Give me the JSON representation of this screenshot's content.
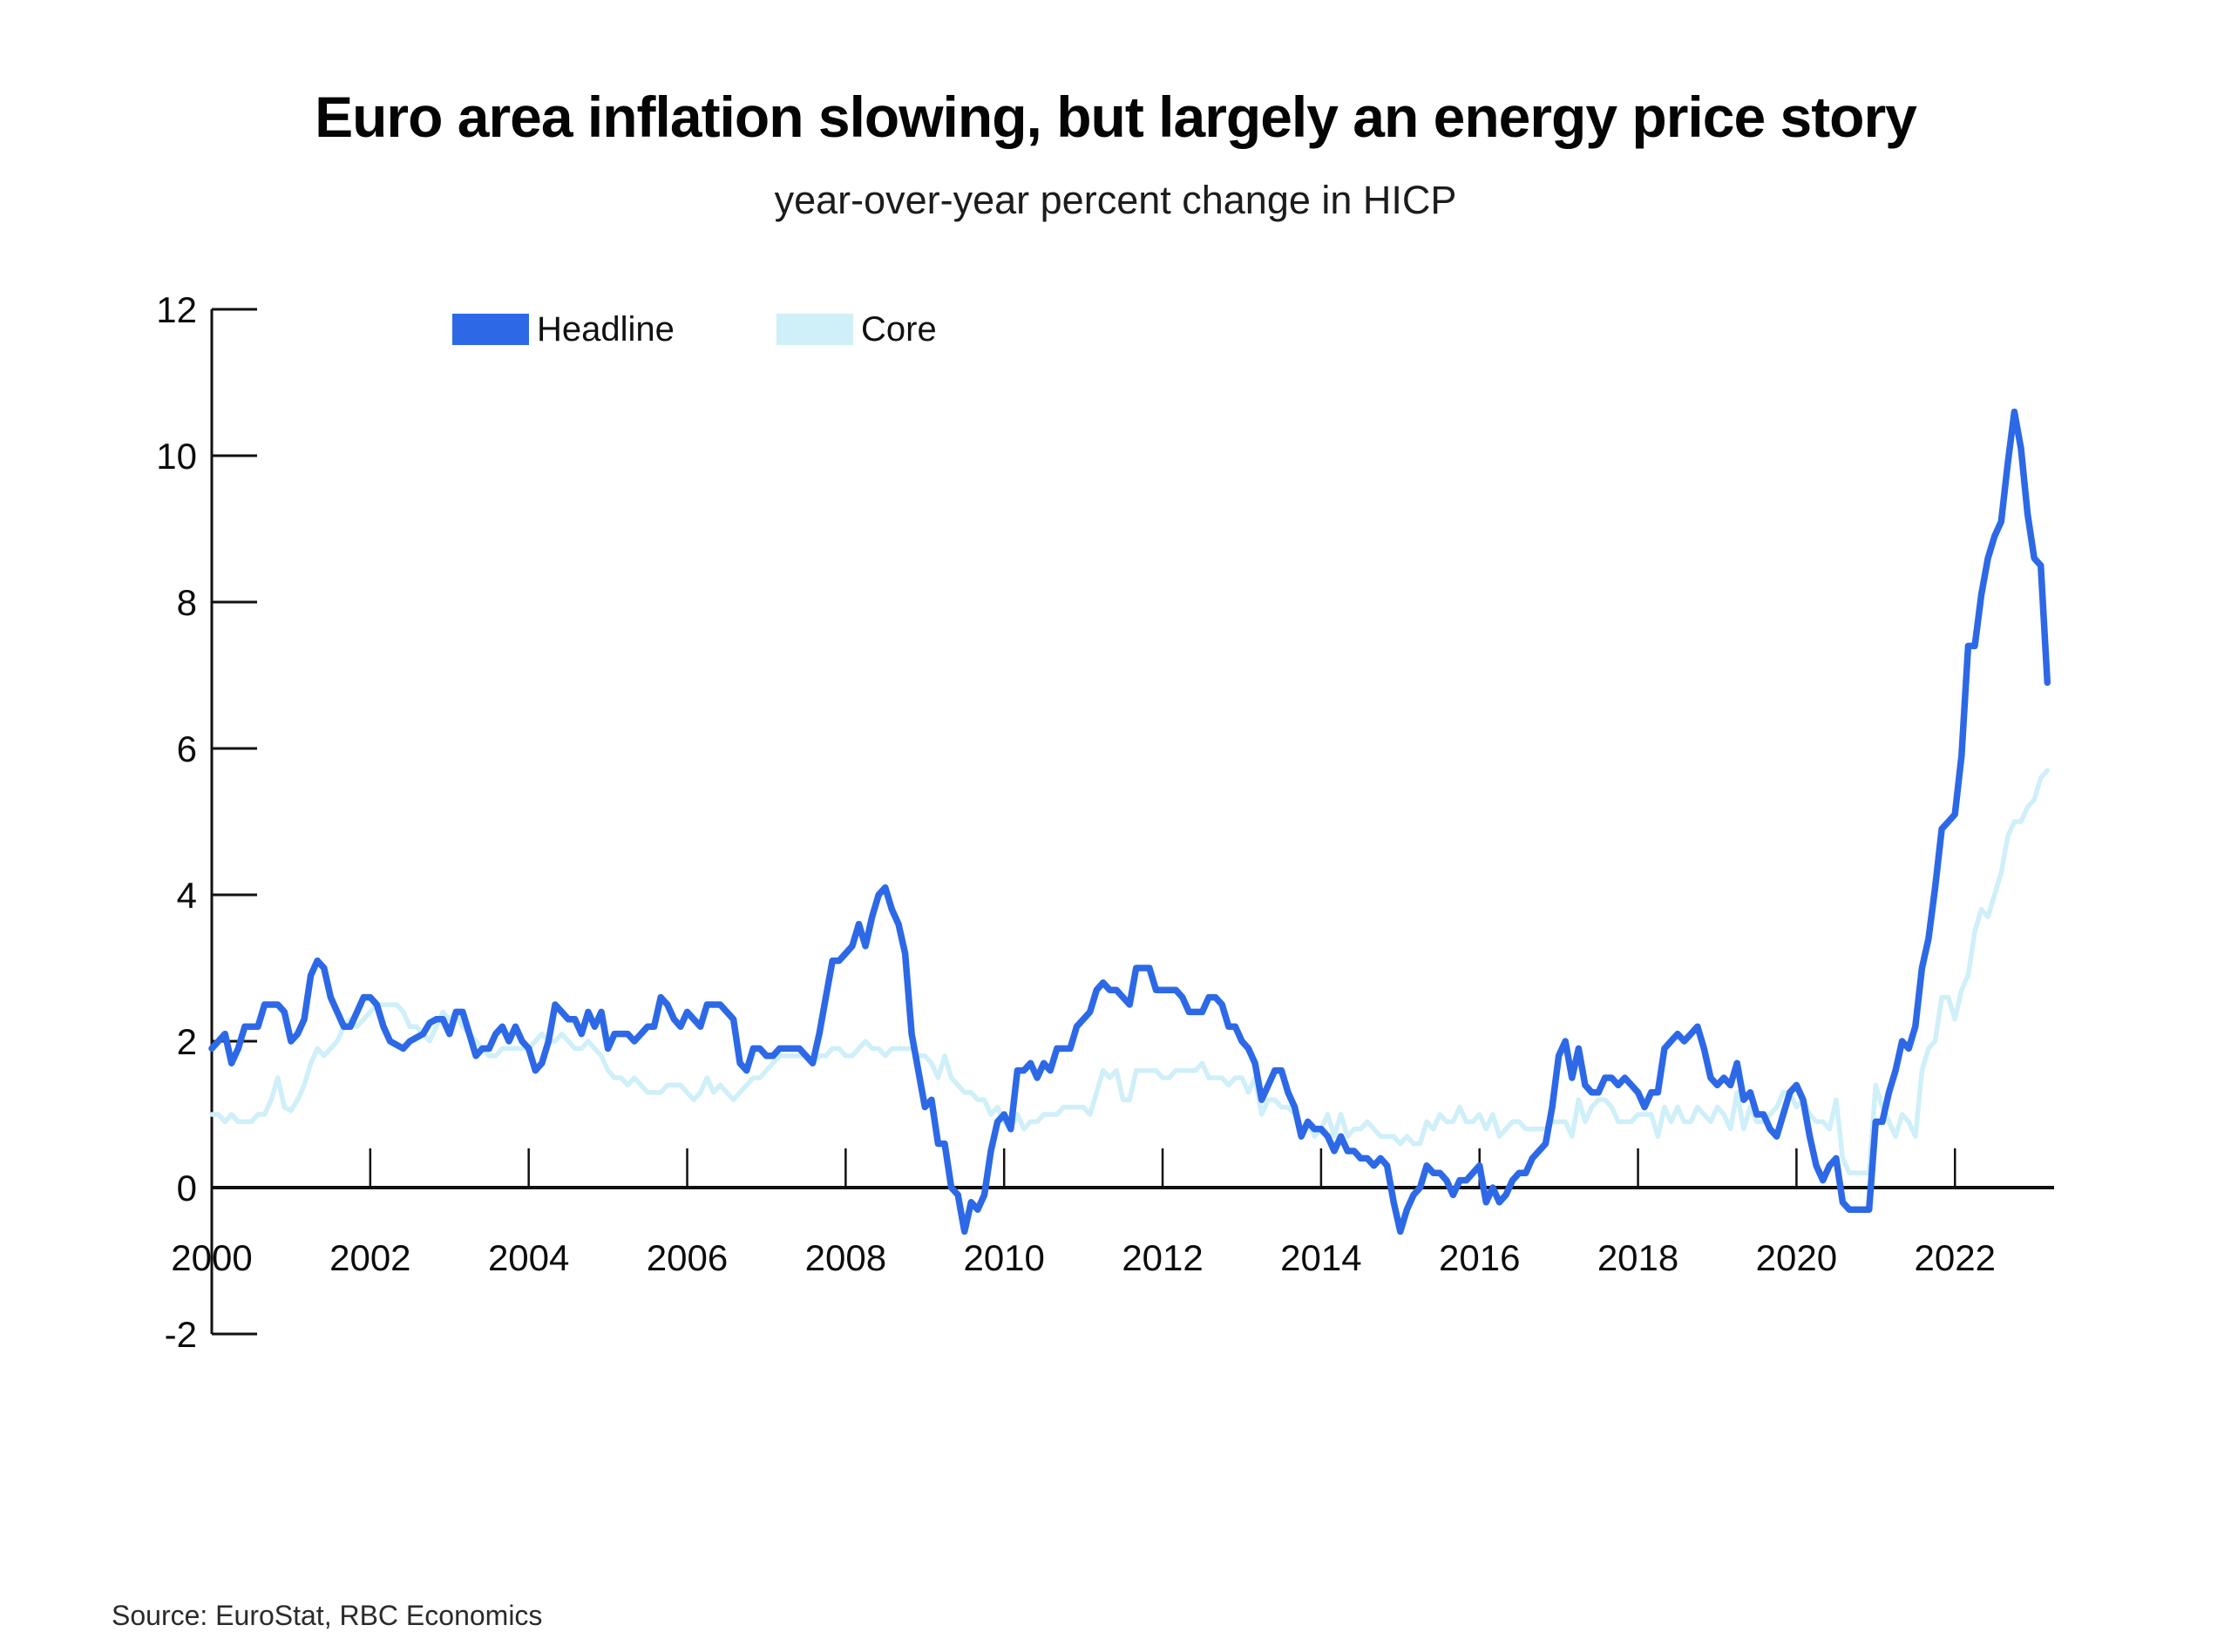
{
  "title": "Euro area inflation slowing, but largely an energy price story",
  "subtitle": "year-over-year percent change in HICP",
  "source": "Source: EuroStat, RBC Economics",
  "legend": [
    {
      "label": "Headline",
      "color": "#2d69e6"
    },
    {
      "label": "Core",
      "color": "#cfeff9"
    }
  ],
  "chart_data": {
    "type": "line",
    "title": "Euro area inflation slowing, but largely an energy price story",
    "subtitle": "year-over-year percent change in HICP",
    "frequency": "monthly",
    "x_start": "2000-01",
    "x_end": "2023-03",
    "xlabel": "",
    "ylabel": "",
    "ylim": [
      -2,
      12
    ],
    "y_ticks": [
      -2,
      0,
      2,
      4,
      6,
      8,
      10,
      12
    ],
    "x_label_years": [
      2000,
      2002,
      2004,
      2006,
      2008,
      2010,
      2012,
      2014,
      2016,
      2018,
      2020,
      2022
    ],
    "x_tick_years": [
      2002,
      2004,
      2006,
      2008,
      2010,
      2012,
      2014,
      2016,
      2018,
      2020,
      2022
    ],
    "grid": false,
    "legend_position": "top-left-inside",
    "axis_color": "#111111",
    "series": [
      {
        "name": "Headline",
        "color": "#2d69e6",
        "width": 7.5,
        "values": [
          1.9,
          2.0,
          2.1,
          1.7,
          1.9,
          2.2,
          2.2,
          2.2,
          2.5,
          2.5,
          2.5,
          2.4,
          2.0,
          2.1,
          2.3,
          2.9,
          3.1,
          3.0,
          2.6,
          2.4,
          2.2,
          2.2,
          2.4,
          2.6,
          2.6,
          2.5,
          2.2,
          2.0,
          1.95,
          1.9,
          2.0,
          2.05,
          2.1,
          2.25,
          2.3,
          2.3,
          2.1,
          2.4,
          2.4,
          2.1,
          1.8,
          1.9,
          1.9,
          2.1,
          2.2,
          2.0,
          2.2,
          2.0,
          1.9,
          1.6,
          1.7,
          2.0,
          2.5,
          2.4,
          2.3,
          2.3,
          2.1,
          2.4,
          2.2,
          2.4,
          1.9,
          2.1,
          2.1,
          2.1,
          2.0,
          2.1,
          2.2,
          2.2,
          2.6,
          2.5,
          2.3,
          2.2,
          2.4,
          2.3,
          2.2,
          2.5,
          2.5,
          2.5,
          2.4,
          2.3,
          1.7,
          1.6,
          1.9,
          1.9,
          1.8,
          1.8,
          1.9,
          1.9,
          1.9,
          1.9,
          1.8,
          1.7,
          2.1,
          2.6,
          3.1,
          3.1,
          3.2,
          3.3,
          3.6,
          3.3,
          3.7,
          4.0,
          4.1,
          3.8,
          3.6,
          3.2,
          2.1,
          1.6,
          1.1,
          1.2,
          0.6,
          0.6,
          0.0,
          -0.1,
          -0.6,
          -0.2,
          -0.3,
          -0.1,
          0.5,
          0.9,
          1.0,
          0.8,
          1.6,
          1.6,
          1.7,
          1.5,
          1.7,
          1.6,
          1.9,
          1.9,
          1.9,
          2.2,
          2.3,
          2.4,
          2.7,
          2.8,
          2.7,
          2.7,
          2.6,
          2.5,
          3.0,
          3.0,
          3.0,
          2.7,
          2.7,
          2.7,
          2.7,
          2.6,
          2.4,
          2.4,
          2.4,
          2.6,
          2.6,
          2.5,
          2.2,
          2.2,
          2.0,
          1.9,
          1.7,
          1.2,
          1.4,
          1.6,
          1.6,
          1.3,
          1.1,
          0.7,
          0.9,
          0.8,
          0.8,
          0.7,
          0.5,
          0.7,
          0.5,
          0.5,
          0.4,
          0.4,
          0.3,
          0.4,
          0.3,
          -0.2,
          -0.6,
          -0.3,
          -0.1,
          0.0,
          0.3,
          0.2,
          0.2,
          0.1,
          -0.1,
          0.1,
          0.1,
          0.2,
          0.3,
          -0.2,
          0.0,
          -0.2,
          -0.1,
          0.1,
          0.2,
          0.2,
          0.4,
          0.5,
          0.6,
          1.1,
          1.8,
          2.0,
          1.5,
          1.9,
          1.4,
          1.3,
          1.3,
          1.5,
          1.5,
          1.4,
          1.5,
          1.4,
          1.3,
          1.1,
          1.3,
          1.3,
          1.9,
          2.0,
          2.1,
          2.0,
          2.1,
          2.2,
          1.9,
          1.5,
          1.4,
          1.5,
          1.4,
          1.7,
          1.2,
          1.3,
          1.0,
          1.0,
          0.8,
          0.7,
          1.0,
          1.3,
          1.4,
          1.2,
          0.7,
          0.3,
          0.1,
          0.3,
          0.4,
          -0.2,
          -0.3,
          -0.3,
          -0.3,
          -0.3,
          0.9,
          0.9,
          1.3,
          1.6,
          2.0,
          1.9,
          2.2,
          3.0,
          3.4,
          4.1,
          4.9,
          5.0,
          5.1,
          5.9,
          7.4,
          7.4,
          8.1,
          8.6,
          8.9,
          9.1,
          9.9,
          10.6,
          10.1,
          9.2,
          8.6,
          8.5,
          6.9
        ]
      },
      {
        "name": "Core",
        "color": "#cfeff9",
        "width": 5.5,
        "values": [
          1.0,
          1.0,
          0.9,
          1.0,
          0.9,
          0.9,
          0.9,
          1.0,
          1.0,
          1.2,
          1.5,
          1.1,
          1.05,
          1.2,
          1.4,
          1.7,
          1.9,
          1.8,
          1.9,
          2.0,
          2.2,
          2.3,
          2.2,
          2.3,
          2.4,
          2.5,
          2.5,
          2.5,
          2.5,
          2.4,
          2.2,
          2.2,
          2.1,
          2.0,
          2.2,
          2.4,
          2.3,
          2.4,
          2.2,
          2.1,
          2.0,
          1.9,
          1.8,
          1.8,
          1.9,
          1.9,
          1.9,
          1.9,
          1.9,
          2.0,
          2.1,
          2.0,
          2.0,
          2.1,
          2.0,
          1.9,
          1.9,
          2.0,
          1.9,
          1.8,
          1.6,
          1.5,
          1.5,
          1.4,
          1.5,
          1.4,
          1.3,
          1.3,
          1.3,
          1.4,
          1.4,
          1.4,
          1.3,
          1.2,
          1.3,
          1.5,
          1.3,
          1.4,
          1.3,
          1.2,
          1.3,
          1.4,
          1.5,
          1.5,
          1.6,
          1.7,
          1.8,
          1.8,
          1.8,
          1.8,
          1.8,
          1.7,
          1.8,
          1.8,
          1.9,
          1.9,
          1.8,
          1.8,
          1.9,
          2.0,
          1.9,
          1.9,
          1.8,
          1.9,
          1.9,
          1.9,
          1.9,
          1.8,
          1.8,
          1.7,
          1.5,
          1.8,
          1.5,
          1.4,
          1.3,
          1.3,
          1.2,
          1.2,
          1.0,
          1.1,
          0.9,
          0.8,
          1.0,
          0.8,
          0.9,
          0.9,
          1.0,
          1.0,
          1.0,
          1.1,
          1.1,
          1.1,
          1.1,
          1.0,
          1.3,
          1.6,
          1.5,
          1.6,
          1.2,
          1.2,
          1.6,
          1.6,
          1.6,
          1.6,
          1.5,
          1.5,
          1.6,
          1.6,
          1.6,
          1.6,
          1.7,
          1.5,
          1.5,
          1.5,
          1.4,
          1.5,
          1.5,
          1.3,
          1.5,
          1.0,
          1.2,
          1.2,
          1.1,
          1.1,
          1.0,
          0.8,
          0.9,
          0.7,
          0.8,
          1.0,
          0.7,
          1.0,
          0.7,
          0.8,
          0.8,
          0.9,
          0.8,
          0.7,
          0.7,
          0.7,
          0.6,
          0.7,
          0.6,
          0.6,
          0.9,
          0.8,
          1.0,
          0.9,
          0.9,
          1.1,
          0.9,
          0.9,
          1.0,
          0.8,
          1.0,
          0.7,
          0.8,
          0.9,
          0.9,
          0.8,
          0.8,
          0.8,
          0.8,
          0.9,
          0.9,
          0.9,
          0.7,
          1.2,
          0.9,
          1.1,
          1.2,
          1.2,
          1.1,
          0.9,
          0.9,
          0.9,
          1.0,
          1.0,
          1.0,
          0.7,
          1.1,
          0.9,
          1.1,
          0.9,
          0.9,
          1.1,
          1.0,
          0.9,
          1.1,
          1.0,
          0.8,
          1.3,
          0.8,
          1.1,
          0.9,
          0.9,
          1.0,
          1.1,
          1.3,
          1.3,
          1.1,
          1.2,
          1.0,
          0.9,
          0.9,
          0.8,
          1.2,
          0.4,
          0.2,
          0.2,
          0.2,
          0.2,
          1.4,
          1.1,
          0.9,
          0.7,
          1.0,
          0.9,
          0.7,
          1.6,
          1.9,
          2.0,
          2.6,
          2.6,
          2.3,
          2.7,
          2.9,
          3.5,
          3.8,
          3.7,
          4.0,
          4.3,
          4.8,
          5.0,
          5.0,
          5.2,
          5.3,
          5.6,
          5.7
        ]
      }
    ]
  }
}
